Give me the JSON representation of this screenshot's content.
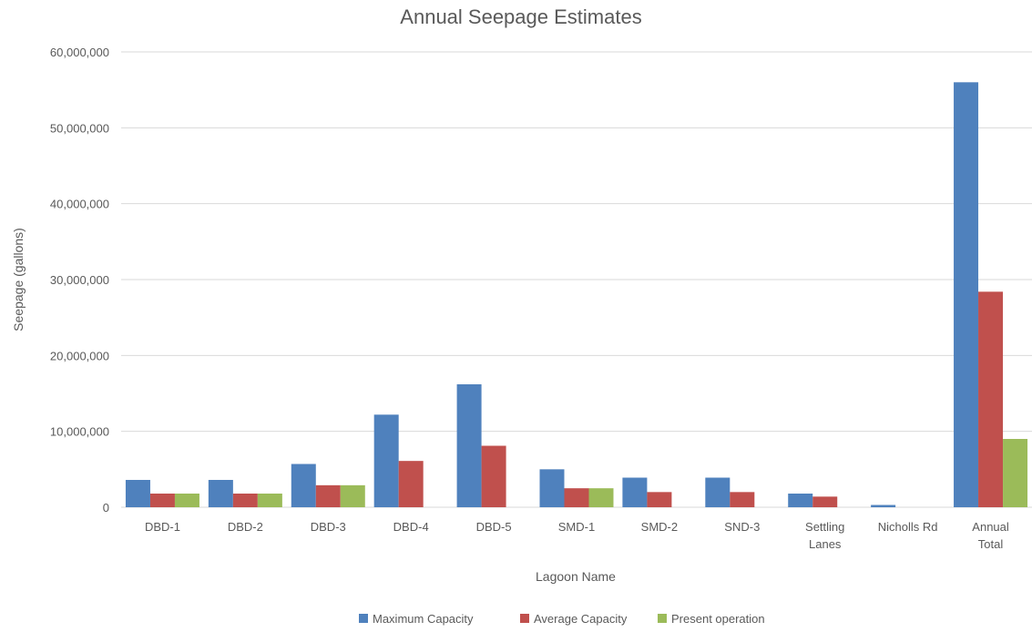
{
  "chart_data": {
    "type": "bar",
    "title": "Annual Seepage Estimates",
    "xlabel": "Lagoon Name",
    "ylabel": "Seepage (gallons)",
    "ylim": [
      0,
      60000000
    ],
    "yticks": [
      "0",
      "10,000,000",
      "20,000,000",
      "30,000,000",
      "40,000,000",
      "50,000,000",
      "60,000,000"
    ],
    "grid": true,
    "legend_position": "bottom",
    "categories": [
      [
        "DBD-1"
      ],
      [
        "DBD-2"
      ],
      [
        "DBD-3"
      ],
      [
        "DBD-4"
      ],
      [
        "DBD-5"
      ],
      [
        "SMD-1"
      ],
      [
        "SMD-2"
      ],
      [
        "SND-3"
      ],
      [
        "Settling",
        "Lanes"
      ],
      [
        "Nicholls Rd"
      ],
      [
        "Annual",
        "Total"
      ]
    ],
    "series": [
      {
        "name": "Maximum Capacity",
        "color": "#4f81bd",
        "values": [
          3600000,
          3600000,
          5700000,
          12200000,
          16200000,
          5000000,
          3900000,
          3900000,
          1800000,
          300000,
          56000000
        ]
      },
      {
        "name": "Average Capacity",
        "color": "#c0504d",
        "values": [
          1800000,
          1800000,
          2900000,
          6100000,
          8100000,
          2500000,
          2000000,
          2000000,
          1400000,
          0,
          28400000
        ]
      },
      {
        "name": "Present operation",
        "color": "#9bbb59",
        "values": [
          1800000,
          1800000,
          2900000,
          0,
          0,
          2500000,
          0,
          0,
          0,
          0,
          9000000
        ]
      }
    ]
  }
}
